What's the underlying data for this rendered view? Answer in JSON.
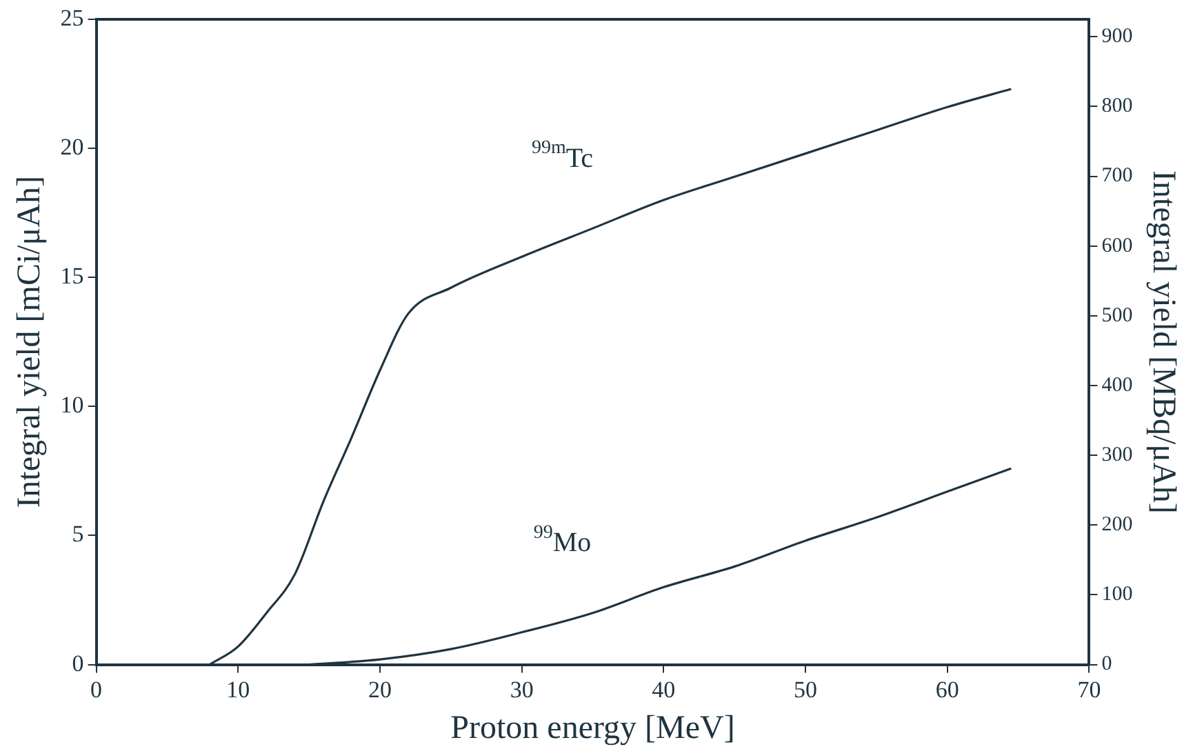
{
  "chart_data": {
    "type": "line",
    "xlabel": "Proton energy [MeV]",
    "ylabel": "Integral yield [mCi/μAh]",
    "y2label": "Integral yield [MBq/μAh]",
    "xlim": [
      0,
      70
    ],
    "xticks": [
      0,
      10,
      20,
      30,
      40,
      50,
      60,
      70
    ],
    "ylim": [
      0,
      25
    ],
    "yticks": [
      0,
      5,
      10,
      15,
      20,
      25
    ],
    "y2lim": [
      0,
      925
    ],
    "y2ticks": [
      0,
      100,
      200,
      300,
      400,
      500,
      600,
      700,
      800,
      900
    ],
    "grid": false,
    "legend": false,
    "marker": "none",
    "line_style": "solid",
    "series": [
      {
        "name": "$^{99m}$Tc",
        "color": "#1f3440",
        "x": [
          8,
          10,
          12,
          14,
          16,
          18,
          20,
          22,
          25,
          30,
          35,
          40,
          45,
          50,
          55,
          60,
          64.5
        ],
        "values": [
          0,
          0.7,
          2,
          3.5,
          6.3,
          8.8,
          11.4,
          13.6,
          14.6,
          15.8,
          16.9,
          18,
          18.9,
          19.8,
          20.7,
          21.6,
          22.3
        ]
      },
      {
        "name": "$^{99}$Mo",
        "color": "#1f3440",
        "x": [
          15,
          20,
          25,
          30,
          35,
          40,
          45,
          50,
          55,
          60,
          64.5
        ],
        "values": [
          0,
          0.2,
          0.6,
          1.25,
          2,
          3,
          3.8,
          4.8,
          5.7,
          6.7,
          7.6
        ]
      }
    ]
  }
}
